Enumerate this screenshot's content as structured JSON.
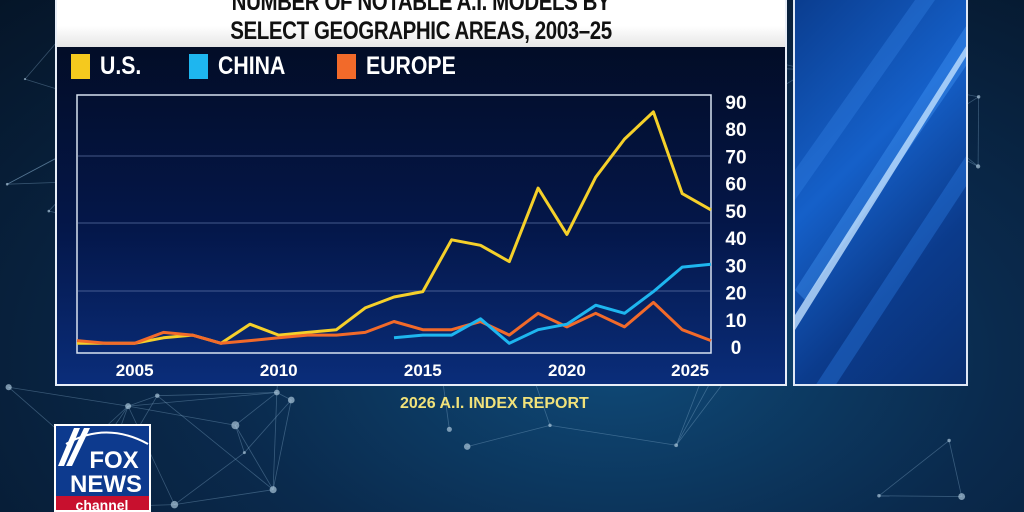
{
  "chart_data": {
    "type": "line",
    "title": [
      "NUMBER OF NOTABLE A.I. MODELS BY",
      "SELECT GEOGRAPHIC AREAS, 2003–25"
    ],
    "x": [
      2003,
      2004,
      2005,
      2006,
      2007,
      2008,
      2009,
      2010,
      2011,
      2012,
      2013,
      2014,
      2015,
      2016,
      2017,
      2018,
      2019,
      2020,
      2021,
      2022,
      2023,
      2024,
      2025
    ],
    "x_ticks": [
      "2005",
      "2010",
      "2015",
      "2020",
      "2025"
    ],
    "y_ticks": [
      "0",
      "10",
      "20",
      "30",
      "40",
      "50",
      "60",
      "70",
      "80",
      "90"
    ],
    "ylim": [
      0,
      90
    ],
    "xlim": [
      2003,
      2025
    ],
    "legend_position": "top-left",
    "series": [
      {
        "name": "U.S.",
        "color": "#f5d02a",
        "values": [
          1,
          1,
          1,
          3,
          4,
          1,
          8,
          4,
          5,
          6,
          14,
          18,
          20,
          39,
          37,
          31,
          58,
          41,
          62,
          76,
          86,
          56,
          50
        ]
      },
      {
        "name": "CHINA",
        "color": "#1eb6ef",
        "values": [
          null,
          null,
          null,
          null,
          null,
          null,
          null,
          null,
          null,
          null,
          null,
          3,
          4,
          4,
          10,
          1,
          6,
          8,
          15,
          12,
          20,
          29,
          30
        ]
      },
      {
        "name": "EUROPE",
        "color": "#f26a2a",
        "values": [
          2,
          1,
          1,
          5,
          4,
          1,
          2,
          3,
          4,
          4,
          5,
          9,
          6,
          6,
          9,
          4,
          12,
          7,
          12,
          7,
          16,
          6,
          2
        ]
      }
    ]
  },
  "source": "2026 A.I. INDEX REPORT",
  "logo": {
    "text": [
      "FOX",
      "NEWS",
      "channel"
    ]
  }
}
